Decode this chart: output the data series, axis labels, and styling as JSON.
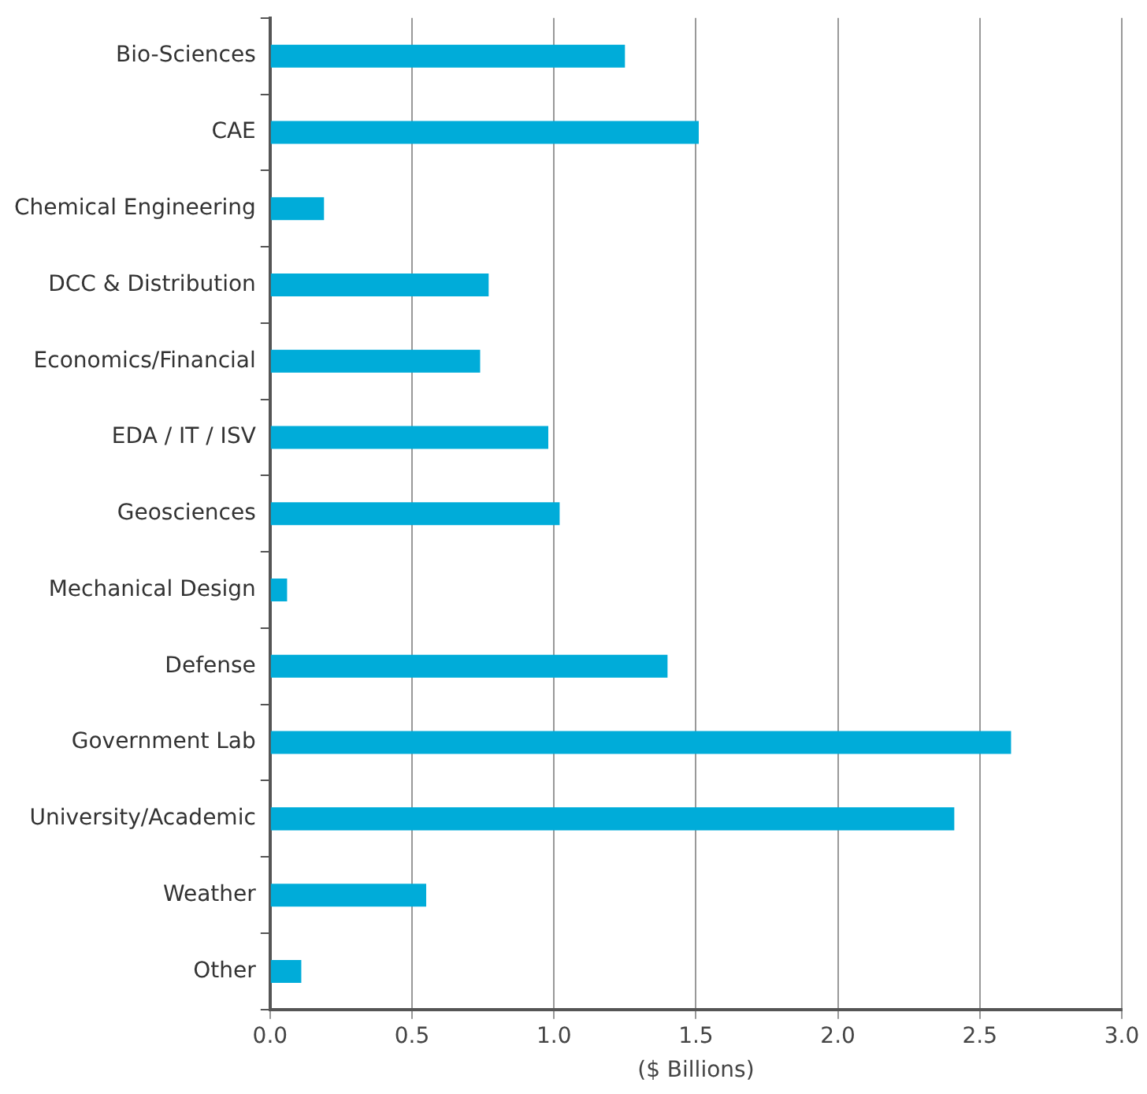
{
  "chart_data": {
    "type": "bar",
    "orientation": "horizontal",
    "xlabel": "($ Billions)",
    "categories": [
      "Bio-Sciences",
      "CAE",
      "Chemical Engineering",
      "DCC & Distribution",
      "Economics/Financial",
      "EDA / IT / ISV",
      "Geosciences",
      "Mechanical Design",
      "Defense",
      "Government Lab",
      "University/Academic",
      "Weather",
      "Other"
    ],
    "values": [
      1.25,
      1.51,
      0.19,
      0.77,
      0.74,
      0.98,
      1.02,
      0.06,
      1.4,
      2.61,
      2.41,
      0.55,
      0.11
    ],
    "color": "#00acd9",
    "xlim": [
      0,
      3
    ],
    "xticks": [
      {
        "value": 0,
        "label": "0.0"
      },
      {
        "value": 0.5,
        "label": "0.5"
      },
      {
        "value": 1,
        "label": "1.0"
      },
      {
        "value": 1.5,
        "label": "1.5"
      },
      {
        "value": 2,
        "label": "2.0"
      },
      {
        "value": 2.5,
        "label": "2.5"
      },
      {
        "value": 3,
        "label": "3.0"
      }
    ],
    "grid": "x",
    "legend": false
  }
}
